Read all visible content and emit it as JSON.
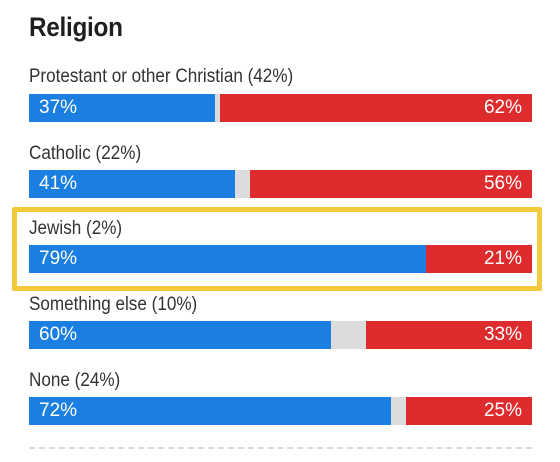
{
  "title": "Religion",
  "colors": {
    "dem": "#1a7fe0",
    "rep": "#dd2b2e",
    "other": "#dcdcdc",
    "highlight": "#f2ca3c"
  },
  "chart_data": {
    "type": "bar",
    "orientation": "horizontal",
    "stacked": true,
    "title": "Religion",
    "categories": [
      "Protestant or other Christian (42%)",
      "Catholic (22%)",
      "Jewish (2%)",
      "Something else (10%)",
      "None (24%)"
    ],
    "series": [
      {
        "values": [
          37,
          41,
          79,
          60,
          72
        ],
        "labels": [
          "37%",
          "41%",
          "79%",
          "60%",
          "72%"
        ],
        "color": "#1a7fe0"
      },
      {
        "values": [
          62,
          56,
          21,
          33,
          25
        ],
        "labels": [
          "62%",
          "56%",
          "21%",
          "33%",
          "25%"
        ],
        "color": "#dd2b2e"
      }
    ],
    "xlim": [
      0,
      100
    ],
    "highlighted_category": "Jewish (2%)",
    "legend": "none",
    "grid": false
  }
}
